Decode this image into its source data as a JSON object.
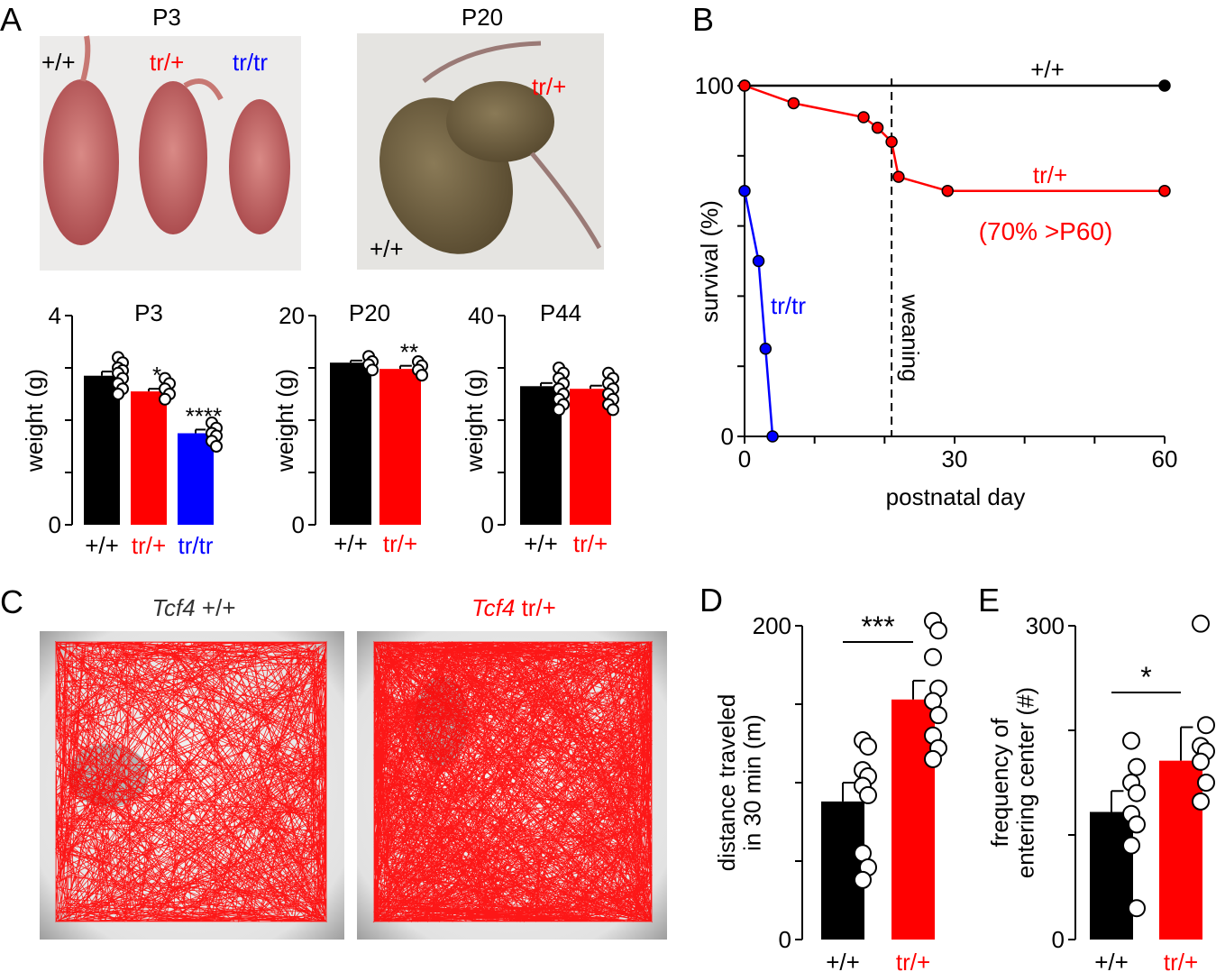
{
  "panels": {
    "A": {
      "letter": "A",
      "photos": [
        {
          "title": "P3",
          "labels": [
            "+/+",
            "tr/+",
            "tr/tr"
          ]
        },
        {
          "title": "P20",
          "labels": [
            "tr/+",
            "+/+"
          ]
        }
      ]
    },
    "B": {
      "letter": "B"
    },
    "C": {
      "letter": "C",
      "tracks": [
        {
          "gene": "Tcf4",
          "genotype": "+/+"
        },
        {
          "gene": "Tcf4",
          "genotype": "tr/+"
        }
      ]
    },
    "D": {
      "letter": "D"
    },
    "E": {
      "letter": "E"
    }
  },
  "colors": {
    "wt": "#000000",
    "het": "#ff0000",
    "hom": "#0000ff"
  },
  "chart_data": [
    {
      "id": "A-P3",
      "type": "bar",
      "title": "P3",
      "categories": [
        "+/+",
        "tr/+",
        "tr/tr"
      ],
      "values": [
        2.85,
        2.55,
        1.75
      ],
      "errors": [
        0.08,
        0.05,
        0.07
      ],
      "points": [
        [
          3.2,
          3.1,
          3.0,
          2.95,
          2.9,
          2.8,
          2.7,
          2.6,
          2.5
        ],
        [
          2.8,
          2.7,
          2.6,
          2.5,
          2.4
        ],
        [
          1.95,
          1.85,
          1.75,
          1.7,
          1.6,
          1.5
        ]
      ],
      "significance": [
        "",
        "*",
        "****"
      ],
      "ylabel": "weight (g)",
      "ylim": [
        0,
        4
      ],
      "yticks": [
        0,
        4
      ]
    },
    {
      "id": "A-P20",
      "type": "bar",
      "title": "P20",
      "categories": [
        "+/+",
        "tr/+"
      ],
      "values": [
        15.5,
        14.9
      ],
      "errors": [
        0.2,
        0.3
      ],
      "points": [
        [
          16.1,
          15.6,
          15.3,
          14.8
        ],
        [
          15.6,
          15.2,
          14.8,
          14.3
        ]
      ],
      "significance": [
        "",
        "**"
      ],
      "ylabel": "weight (g)",
      "ylim": [
        0,
        20
      ],
      "yticks": [
        0,
        20
      ]
    },
    {
      "id": "A-P44",
      "type": "bar",
      "title": "P44",
      "categories": [
        "+/+",
        "tr/+"
      ],
      "values": [
        26.5,
        26
      ],
      "errors": [
        0.6,
        0.6
      ],
      "points": [
        [
          30,
          29,
          28,
          27,
          26,
          25,
          24,
          23,
          22
        ],
        [
          29,
          28,
          27,
          26,
          25,
          24,
          23,
          22
        ]
      ],
      "significance": [
        "",
        ""
      ],
      "ylabel": "weight (g)",
      "ylim": [
        0,
        40
      ],
      "yticks": [
        0,
        40
      ]
    },
    {
      "id": "B",
      "type": "line",
      "xlabel": "postnatal day",
      "ylabel": "survival (%)",
      "xlim": [
        0,
        60
      ],
      "ylim": [
        0,
        100
      ],
      "xticks": [
        0,
        30,
        60
      ],
      "yticks": [
        0,
        100
      ],
      "annotation": "weaning",
      "annotation_x": 21,
      "series": [
        {
          "name": "+/+",
          "color": "#000000",
          "x": [
            0,
            60
          ],
          "y": [
            100,
            100
          ]
        },
        {
          "name": "tr/+",
          "note": "(70% >P60)",
          "color": "#ff0000",
          "x": [
            0,
            7,
            17,
            19,
            21,
            22,
            29,
            60
          ],
          "y": [
            100,
            95,
            91,
            88,
            84,
            74,
            70,
            70
          ]
        },
        {
          "name": "tr/tr",
          "color": "#0000ff",
          "x": [
            0,
            2,
            3,
            4
          ],
          "y": [
            70,
            50,
            25,
            0
          ]
        }
      ]
    },
    {
      "id": "D",
      "type": "bar",
      "categories": [
        "+/+",
        "tr/+"
      ],
      "values": [
        88,
        153
      ],
      "errors": [
        12,
        12
      ],
      "points": [
        [
          127,
          123,
          108,
          104,
          98,
          92,
          55,
          46,
          38
        ],
        [
          203,
          197,
          180,
          160,
          152,
          143,
          130,
          122,
          115
        ]
      ],
      "significance_bar": "***",
      "ylabel": [
        "distance traveled",
        "in 30 min (m)"
      ],
      "ylim": [
        0,
        200
      ],
      "yticks": [
        0,
        200
      ]
    },
    {
      "id": "E",
      "type": "bar",
      "categories": [
        "+/+",
        "tr/+"
      ],
      "values": [
        122,
        171
      ],
      "errors": [
        20,
        32
      ],
      "points": [
        [
          190,
          165,
          150,
          140,
          120,
          110,
          90,
          30
        ],
        [
          302,
          205,
          185,
          180,
          170,
          150,
          132
        ]
      ],
      "significance_bar": "*",
      "ylabel": [
        "frequency of",
        "entering center (#)"
      ],
      "ylim": [
        0,
        300
      ],
      "yticks": [
        0,
        300
      ]
    }
  ]
}
